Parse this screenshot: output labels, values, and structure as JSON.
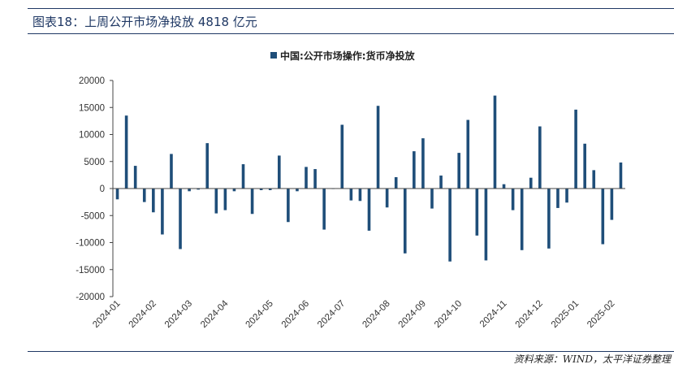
{
  "figure": {
    "title": "图表18：上周公开市场净投放 4818 亿元",
    "source": "资料来源：WIND，太平洋证券整理"
  },
  "colors": {
    "bar": "#1f4e79",
    "axis": "#444444",
    "rule": "#1f3864"
  },
  "chart_data": {
    "type": "bar",
    "title": "",
    "series": [
      {
        "name": "中国:公开市场操作:货币净投放",
        "values": [
          -2000,
          13500,
          4200,
          -2500,
          -4400,
          -8500,
          6400,
          -11200,
          -500,
          -200,
          8400,
          -4600,
          -4000,
          -500,
          4500,
          -4700,
          -300,
          -300,
          6100,
          -6200,
          -500,
          4000,
          3600,
          -7600,
          0,
          11800,
          -2200,
          -2300,
          -7800,
          15300,
          -3500,
          2100,
          -12000,
          6900,
          9300,
          -3700,
          2400,
          -13500,
          6600,
          12700,
          -8700,
          -13300,
          17200,
          800,
          -4000,
          -11400,
          2000,
          11500,
          -11100,
          -3600,
          -2600,
          14600,
          8300,
          3400,
          -10300,
          -5800,
          4818
        ]
      }
    ],
    "x_tick_labels": [
      "2024-01",
      "2024-02",
      "2024-03",
      "2024-04",
      "2024-05",
      "2024-06",
      "2024-07",
      "2024-08",
      "2024-09",
      "2024-10",
      "2024-11",
      "2024-12",
      "2025-01",
      "2025-02"
    ],
    "x_tick_positions": [
      0,
      4,
      8,
      12,
      17,
      21,
      25,
      30,
      34,
      38,
      43,
      47,
      51,
      55
    ],
    "ylim": [
      -20000,
      20000
    ],
    "yticks": [
      -20000,
      -15000,
      -10000,
      -5000,
      0,
      5000,
      10000,
      15000,
      20000
    ],
    "xlabel": "",
    "ylabel": "",
    "legend_position": "top-center",
    "grid": false
  }
}
